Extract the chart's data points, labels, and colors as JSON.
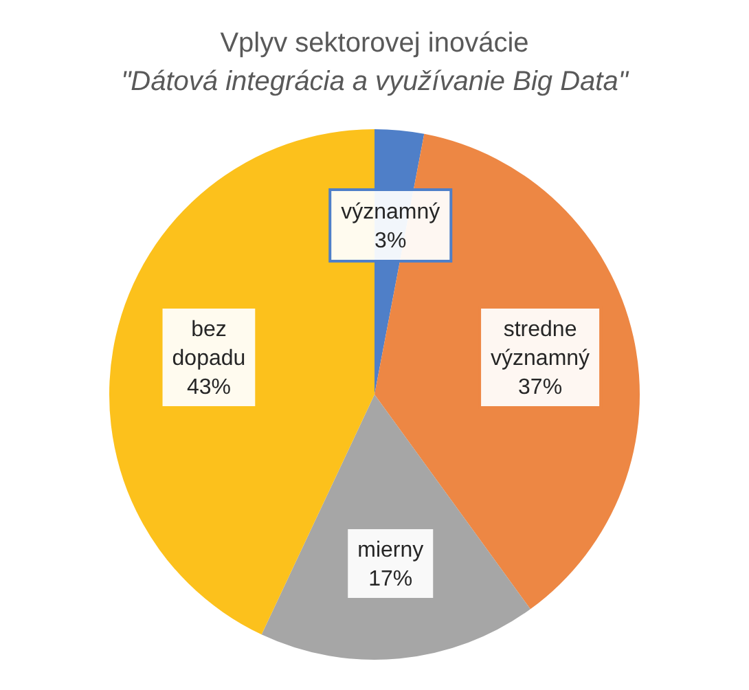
{
  "chart_data": {
    "type": "pie",
    "title": "Vplyv sektorovej inovácie",
    "subtitle": "\"Dátová integrácia a využívanie Big Data\"",
    "categories": [
      "významný",
      "stredne významný",
      "mierny",
      "bez dopadu"
    ],
    "values": [
      3,
      37,
      17,
      43
    ],
    "colors": [
      "#4f7fc8",
      "#ed8744",
      "#a6a6a6",
      "#fcc11c"
    ],
    "value_labels": [
      "3%",
      "37%",
      "17%",
      "43%"
    ]
  }
}
